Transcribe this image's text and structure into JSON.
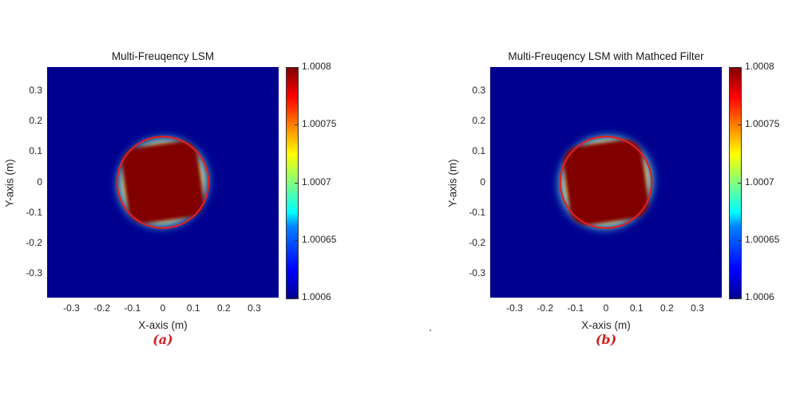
{
  "colormap": {
    "name": "jet",
    "stops": [
      "#00008f",
      "#0000ff",
      "#0080ff",
      "#00ffff",
      "#80ff80",
      "#ffff00",
      "#ff8000",
      "#ff0000",
      "#800000"
    ]
  },
  "chart_data": [
    {
      "type": "heatmap",
      "title": "Multi-Freuqency LSM",
      "xlabel": "X-axis (m)",
      "ylabel": "Y-axis (m)",
      "xlim": [
        -0.38,
        0.38
      ],
      "ylim": [
        -0.38,
        0.38
      ],
      "xticks": [
        "-0.3",
        "-0.2",
        "-0.1",
        "0",
        "0.1",
        "0.2",
        "0.3"
      ],
      "yticks": [
        "0.3",
        "0.2",
        "0.1",
        "0",
        "-0.1",
        "-0.2",
        "-0.3"
      ],
      "colorbar": {
        "min": 1.0006,
        "max": 1.0008,
        "ticks": [
          "1.0008",
          "1.00075",
          "1.0007",
          "1.00065",
          "1.0006"
        ]
      },
      "true_boundary": {
        "shape": "circle",
        "center": [
          0,
          0
        ],
        "radius": 0.15,
        "color": "#e02020"
      },
      "reconstruction": {
        "shape": "rounded square",
        "center": [
          0,
          0
        ],
        "half_width": 0.125,
        "value": 1.0008,
        "background_value": 1.0006
      },
      "caption": "(a)"
    },
    {
      "type": "heatmap",
      "title": "Multi-Freuqency LSM with Mathced Filter",
      "xlabel": "X-axis (m)",
      "ylabel": "Y-axis (m)",
      "xlim": [
        -0.38,
        0.38
      ],
      "ylim": [
        -0.38,
        0.38
      ],
      "xticks": [
        "-0.3",
        "-0.2",
        "-0.1",
        "0",
        "0.1",
        "0.2",
        "0.3"
      ],
      "yticks": [
        "0.3",
        "0.2",
        "0.1",
        "0",
        "-0.1",
        "-0.2",
        "-0.3"
      ],
      "colorbar": {
        "min": 1.0006,
        "max": 1.0008,
        "ticks": [
          "1.0008",
          "1.00075",
          "1.0007",
          "1.00065",
          "1.0006"
        ]
      },
      "true_boundary": {
        "shape": "circle",
        "center": [
          0,
          0
        ],
        "radius": 0.15,
        "color": "#e02020"
      },
      "reconstruction": {
        "shape": "rounded square",
        "center": [
          0,
          0
        ],
        "half_width": 0.13,
        "value": 1.0008,
        "background_value": 1.0006
      },
      "caption": "(b)"
    }
  ]
}
